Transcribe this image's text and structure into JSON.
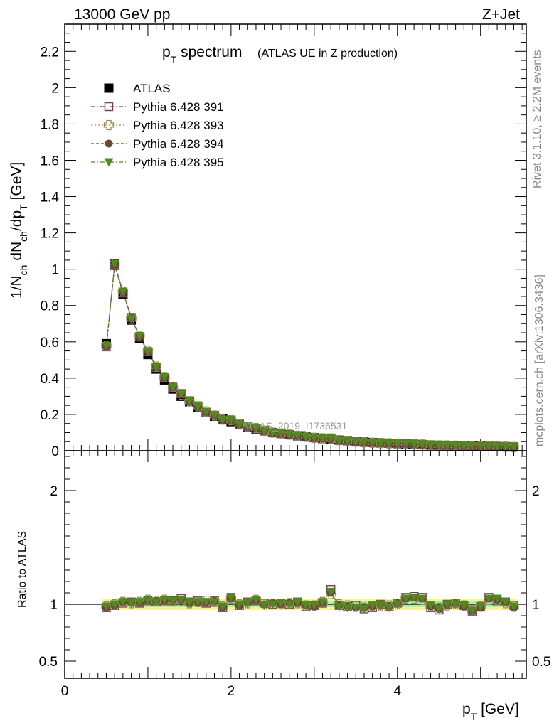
{
  "header": {
    "left": "13000 GeV pp",
    "right": "Z+Jet",
    "side_top": "Rivet 3.1.10, ≥ 2.2M events",
    "side_bottom": "mcplots.cern.ch [arXiv:1306.3436]"
  },
  "chart_data": [
    {
      "type": "scatter",
      "title": "p_T spectrum",
      "subtitle": "(ATLAS UE in Z production)",
      "watermark": "ATLAS_2019_I1736531",
      "xlabel": "p_T [GeV]",
      "ylabel": "1/N_ch dN_ch/dp_T [GeV]",
      "xlim": [
        0,
        5.55
      ],
      "ylim": [
        0,
        2.35
      ],
      "yticks": [
        "0",
        "0.2",
        "0.4",
        "0.6",
        "0.8",
        "1",
        "1.2",
        "1.4",
        "1.6",
        "1.8",
        "2",
        "2.2"
      ],
      "legend_position": "top-left",
      "x": [
        0.5,
        0.6,
        0.7,
        0.8,
        0.9,
        1.0,
        1.1,
        1.2,
        1.3,
        1.4,
        1.5,
        1.6,
        1.7,
        1.8,
        1.9,
        2.0,
        2.1,
        2.2,
        2.3,
        2.4,
        2.5,
        2.6,
        2.7,
        2.8,
        2.9,
        3.0,
        3.1,
        3.2,
        3.3,
        3.4,
        3.5,
        3.6,
        3.7,
        3.8,
        3.9,
        4.0,
        4.1,
        4.2,
        4.3,
        4.4,
        4.5,
        4.6,
        4.7,
        4.8,
        4.9,
        5.0,
        5.1,
        5.2,
        5.3,
        5.4
      ],
      "series": [
        {
          "name": "ATLAS",
          "color": "#000000",
          "marker": "filled-square",
          "values": [
            0.59,
            1.03,
            0.86,
            0.72,
            0.62,
            0.53,
            0.45,
            0.39,
            0.34,
            0.3,
            0.27,
            0.24,
            0.21,
            0.19,
            0.175,
            0.16,
            0.145,
            0.13,
            0.12,
            0.11,
            0.1,
            0.095,
            0.088,
            0.082,
            0.077,
            0.072,
            0.067,
            0.062,
            0.058,
            0.055,
            0.051,
            0.048,
            0.045,
            0.043,
            0.041,
            0.039,
            0.037,
            0.035,
            0.033,
            0.031,
            0.03,
            0.029,
            0.028,
            0.027,
            0.026,
            0.025,
            0.024,
            0.023,
            0.022,
            0.021
          ]
        },
        {
          "name": "Pythia 6.428 391",
          "color": "#7a3f62",
          "marker": "open-square",
          "dash": "6,3,1,3",
          "ratio": [
            0.97,
            0.99,
            1.01,
            1.02,
            1.01,
            1.03,
            1.02,
            1.03,
            1.03,
            1.05,
            1.02,
            1.03,
            1.01,
            1.03,
            0.97,
            1.06,
            0.99,
            1.02,
            1.03,
            1.01,
            1.0,
            1.01,
            1.0,
            1.02,
            0.98,
            0.99,
            1.01,
            1.13,
            0.99,
            0.98,
            0.99,
            0.96,
            0.97,
            1.0,
            0.98,
            1.01,
            1.06,
            1.07,
            1.06,
            0.97,
            0.95,
            1.0,
            1.01,
            0.99,
            0.94,
            0.98,
            1.06,
            1.03,
            1.02,
            0.99
          ]
        },
        {
          "name": "Pythia 6.428 393",
          "color": "#9a8a5a",
          "marker": "open-cross",
          "dash": "2,3",
          "ratio": [
            0.98,
            1.0,
            1.02,
            1.01,
            1.02,
            1.04,
            1.03,
            1.04,
            1.03,
            1.03,
            1.01,
            1.02,
            1.03,
            1.02,
            0.98,
            1.05,
            1.0,
            1.01,
            1.04,
            1.0,
            1.0,
            1.0,
            1.01,
            1.01,
            0.99,
            0.99,
            1.02,
            1.09,
            1.0,
            0.99,
            0.98,
            0.97,
            0.98,
            0.99,
            0.99,
            1.0,
            1.05,
            1.05,
            1.04,
            0.98,
            0.97,
            0.99,
            1.0,
            0.99,
            0.95,
            0.98,
            1.04,
            1.04,
            1.01,
            0.98
          ]
        },
        {
          "name": "Pythia 6.428 394",
          "color": "#6a4b2c",
          "marker": "filled-circle",
          "dash": "4,3",
          "ratio": [
            0.97,
            0.99,
            1.02,
            1.02,
            1.01,
            1.03,
            1.03,
            1.03,
            1.04,
            1.04,
            1.01,
            1.02,
            1.02,
            1.03,
            0.97,
            1.05,
            0.99,
            1.02,
            1.03,
            1.0,
            1.01,
            1.0,
            1.01,
            1.01,
            0.99,
            0.98,
            1.01,
            1.1,
            0.99,
            0.98,
            0.97,
            0.97,
            0.98,
            1.0,
            0.98,
            1.01,
            1.05,
            1.06,
            1.05,
            0.98,
            0.96,
            1.0,
            1.01,
            0.98,
            0.94,
            0.97,
            1.05,
            1.04,
            1.02,
            0.97
          ]
        },
        {
          "name": "Pythia 6.428 395",
          "color": "#4e8a1f",
          "marker": "filled-triangle-down",
          "dash": "6,3,1,3",
          "ratio": [
            0.98,
            1.0,
            1.02,
            1.01,
            1.02,
            1.03,
            1.02,
            1.04,
            1.03,
            1.04,
            1.02,
            1.02,
            1.02,
            1.02,
            0.98,
            1.06,
            1.0,
            1.01,
            1.04,
            0.99,
            1.0,
            1.01,
            1.0,
            1.02,
            0.99,
            0.99,
            1.02,
            1.11,
            0.98,
            0.97,
            0.97,
            0.96,
            0.99,
            0.99,
            0.97,
            1.0,
            1.05,
            1.06,
            1.05,
            0.99,
            0.96,
            1.0,
            1.0,
            0.99,
            0.94,
            0.98,
            1.05,
            1.05,
            1.02,
            0.98
          ]
        }
      ]
    },
    {
      "type": "scatter",
      "ylabel": "Ratio to ATLAS",
      "xlabel": "p_T [GeV]",
      "xlim": [
        0,
        5.55
      ],
      "ylim": [
        0.35,
        2.35
      ],
      "yticks": [
        "0.5",
        "1",
        "2"
      ],
      "xticks": [
        "0",
        "2",
        "4"
      ],
      "reference": 1,
      "bands": {
        "inner": 0.025,
        "outer": 0.05,
        "inner_color": "#a8f0b4",
        "outer_color": "#f5f78a"
      }
    }
  ]
}
